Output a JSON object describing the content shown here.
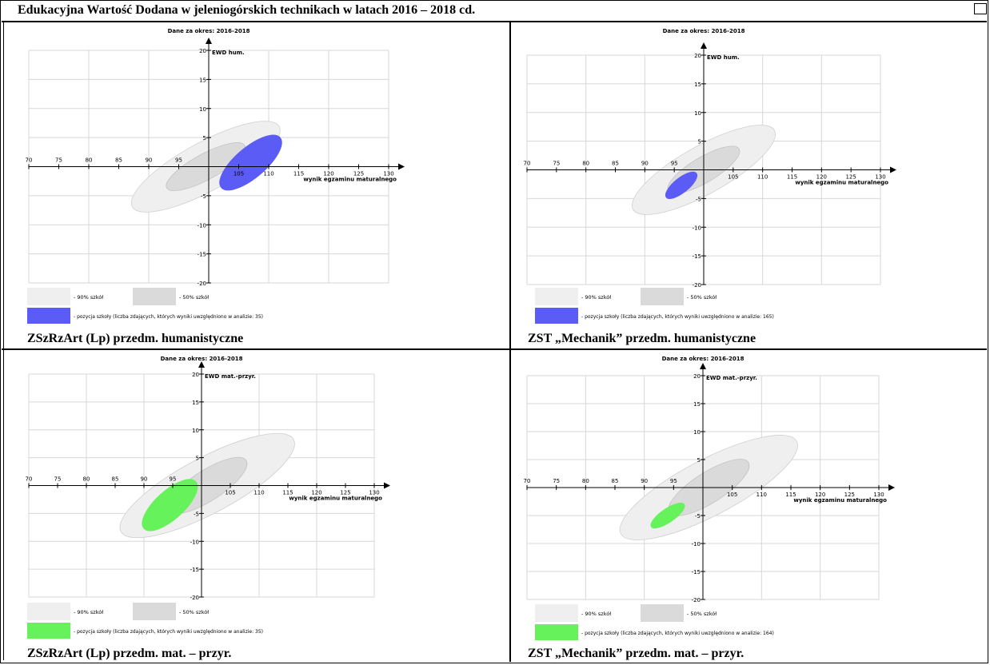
{
  "page": {
    "title": "Edukacyjna Wartość Dodana w jeleniogórskich technikach w latach 2016 – 2018 cd."
  },
  "colors": {
    "band90": "#efefef",
    "band50": "#dadada",
    "blue": "#5b5bf5",
    "green": "#66f25a"
  },
  "chart_data": [
    {
      "id": "panel-1",
      "type": "scatter",
      "caption": "ZSzRzArt (Lp) przedm. humanistyczne",
      "title": "Dane za okres: 2016-2018",
      "xlabel": "wynik egzaminu maturalnego",
      "ylabel": "EWD hum.",
      "xlim": [
        70,
        130
      ],
      "ylim": [
        -20,
        20
      ],
      "x_ticks": [
        70,
        75,
        80,
        85,
        90,
        95,
        105,
        110,
        115,
        120,
        125,
        130
      ],
      "y_ticks": [
        -20,
        -15,
        -10,
        -5,
        5,
        10,
        15,
        20
      ],
      "grid": true,
      "legend": {
        "band90_label": "- 90% szkół",
        "band50_label": "- 50% szkół",
        "school_label": "- pozycja szkoły (liczba zdających, których wyniki uwzględniono w analizie: 35)"
      },
      "series_color": "blue",
      "ellipses": {
        "band90": {
          "cx": 99.5,
          "cy": 0.0,
          "x_min": 87.5,
          "x_max": 112.0,
          "y_min": -6.8,
          "y_max": 7.0
        },
        "band50": {
          "cx": 99.5,
          "cy": 0.0,
          "x_min": 93.5,
          "x_max": 106.5,
          "y_min": -3.5,
          "y_max": 3.8
        },
        "school": {
          "cx": 107.0,
          "cy": 0.7,
          "x_min": 102.2,
          "x_max": 112.0,
          "y_min": -2.8,
          "y_max": 5.8
        }
      }
    },
    {
      "id": "panel-2",
      "type": "scatter",
      "caption": "ZST „Mechanik” przedm. humanistyczne",
      "title": "Dane za okres: 2016-2018",
      "xlabel": "wynik egzaminu maturalnego",
      "ylabel": "EWD hum.",
      "xlim": [
        70,
        130
      ],
      "ylim": [
        -20,
        20
      ],
      "x_ticks": [
        70,
        75,
        80,
        85,
        90,
        95,
        105,
        110,
        115,
        120,
        125,
        130
      ],
      "y_ticks": [
        -20,
        -15,
        -10,
        -5,
        5,
        10,
        15,
        20
      ],
      "grid": true,
      "legend": {
        "band90_label": "- 90% szkół",
        "band50_label": "- 50% szkół",
        "school_label": "- pozycja szkoły (liczba zdających, których wyniki uwzględniono w analizie: 165)"
      },
      "series_color": "blue",
      "ellipses": {
        "band90": {
          "cx": 100.0,
          "cy": 0.0,
          "x_min": 88.0,
          "x_max": 112.0,
          "y_min": -6.8,
          "y_max": 7.0
        },
        "band50": {
          "cx": 100.0,
          "cy": 0.0,
          "x_min": 94.0,
          "x_max": 106.0,
          "y_min": -3.5,
          "y_max": 3.8
        },
        "school": {
          "cx": 96.2,
          "cy": -2.7,
          "x_min": 93.6,
          "x_max": 98.7,
          "y_min": -4.8,
          "y_max": -0.6
        }
      }
    },
    {
      "id": "panel-3",
      "type": "scatter",
      "caption": "ZSzRzArt (Lp) przedm. mat. – przyr.",
      "title": "Dane za okres: 2016-2018",
      "xlabel": "wynik egzaminu maturalnego",
      "ylabel": "EWD mat.-przyr.",
      "xlim": [
        70,
        130
      ],
      "ylim": [
        -20,
        20
      ],
      "x_ticks": [
        70,
        75,
        80,
        85,
        90,
        95,
        105,
        110,
        115,
        120,
        125,
        130
      ],
      "y_ticks": [
        -20,
        -15,
        -10,
        -5,
        5,
        10,
        15,
        20
      ],
      "grid": true,
      "legend": {
        "band90_label": "- 90% szkół",
        "band50_label": "- 50% szkół",
        "school_label": "- pozycja szkoły (liczba zdających, których wyniki uwzględniono w analizie: 35)"
      },
      "series_color": "green",
      "ellipses": {
        "band90": {
          "cx": 101.0,
          "cy": 0.0,
          "x_min": 86.0,
          "x_max": 116.0,
          "y_min": -8.0,
          "y_max": 8.5
        },
        "band50": {
          "cx": 101.0,
          "cy": 0.0,
          "x_min": 94.5,
          "x_max": 108.0,
          "y_min": -4.5,
          "y_max": 4.5
        },
        "school": {
          "cx": 94.5,
          "cy": -3.5,
          "x_min": 90.0,
          "x_max": 99.0,
          "y_min": -7.8,
          "y_max": 0.6
        }
      }
    },
    {
      "id": "panel-4",
      "type": "scatter",
      "caption": "ZST „Mechanik” przedm. mat. – przyr.",
      "title": "Dane za okres: 2016-2018",
      "xlabel": "wynik egzaminu maturalnego",
      "ylabel": "EWD mat.-przyr.",
      "xlim": [
        70,
        130
      ],
      "ylim": [
        -20,
        20
      ],
      "x_ticks": [
        70,
        75,
        80,
        85,
        90,
        95,
        105,
        110,
        115,
        120,
        125,
        130
      ],
      "y_ticks": [
        -20,
        -15,
        -10,
        -5,
        5,
        10,
        15,
        20
      ],
      "grid": true,
      "legend": {
        "band90_label": "- 90% szkół",
        "band50_label": "- 50% szkół",
        "school_label": "- pozycja szkoły (liczba zdających, których wyniki uwzględniono w analizie: 164)"
      },
      "series_color": "green",
      "ellipses": {
        "band90": {
          "cx": 101.0,
          "cy": 0.0,
          "x_min": 86.0,
          "x_max": 116.0,
          "y_min": -8.0,
          "y_max": 8.5
        },
        "band50": {
          "cx": 101.0,
          "cy": 0.0,
          "x_min": 94.5,
          "x_max": 108.0,
          "y_min": -4.5,
          "y_max": 4.5
        },
        "school": {
          "cx": 94.0,
          "cy": -5.0,
          "x_min": 91.2,
          "x_max": 96.8,
          "y_min": -7.0,
          "y_max": -3.0
        }
      }
    }
  ]
}
